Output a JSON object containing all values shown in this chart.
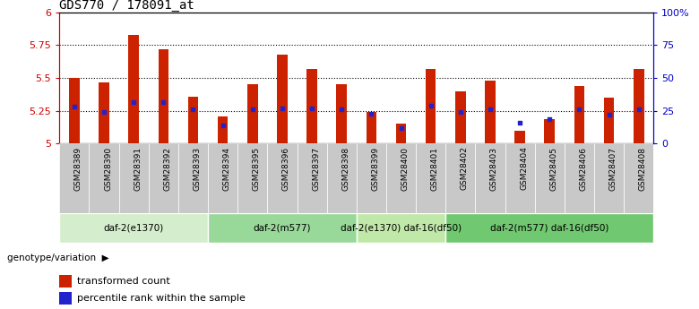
{
  "title": "GDS770 / 178091_at",
  "samples": [
    "GSM28389",
    "GSM28390",
    "GSM28391",
    "GSM28392",
    "GSM28393",
    "GSM28394",
    "GSM28395",
    "GSM28396",
    "GSM28397",
    "GSM28398",
    "GSM28399",
    "GSM28400",
    "GSM28401",
    "GSM28402",
    "GSM28403",
    "GSM28404",
    "GSM28405",
    "GSM28406",
    "GSM28407",
    "GSM28408"
  ],
  "bar_heights": [
    5.5,
    5.47,
    5.83,
    5.72,
    5.36,
    5.21,
    5.45,
    5.68,
    5.57,
    5.45,
    5.24,
    5.15,
    5.57,
    5.4,
    5.48,
    5.1,
    5.19,
    5.44,
    5.35,
    5.57
  ],
  "blue_dots": [
    5.28,
    5.24,
    5.32,
    5.32,
    5.26,
    5.14,
    5.26,
    5.27,
    5.27,
    5.26,
    5.23,
    5.12,
    5.29,
    5.24,
    5.26,
    5.16,
    5.19,
    5.26,
    5.22,
    5.26
  ],
  "ylim_left": [
    5.0,
    6.0
  ],
  "ylim_right": [
    0,
    100
  ],
  "yticks_left": [
    5.0,
    5.25,
    5.5,
    5.75,
    6.0
  ],
  "ytick_labels_left": [
    "5",
    "5.25",
    "5.5",
    "5.75",
    "6"
  ],
  "yticks_right": [
    0,
    25,
    50,
    75,
    100
  ],
  "ytick_labels_right": [
    "0",
    "25",
    "50",
    "75",
    "100%"
  ],
  "bar_color": "#cc2200",
  "dot_color": "#2222cc",
  "bar_bottom": 5.0,
  "group_labels": [
    "daf-2(e1370)",
    "daf-2(m577)",
    "daf-2(e1370) daf-16(df50)",
    "daf-2(m577) daf-16(df50)"
  ],
  "group_colors": [
    "#d4edcc",
    "#98d898",
    "#c0e8a8",
    "#70c870"
  ],
  "group_ranges": [
    [
      0,
      4
    ],
    [
      5,
      9
    ],
    [
      10,
      12
    ],
    [
      13,
      19
    ]
  ],
  "genotype_label": "genotype/variation",
  "legend_items": [
    "transformed count",
    "percentile rank within the sample"
  ],
  "title_fontsize": 10,
  "axis_color_left": "#cc0000",
  "axis_color_right": "#0000cc",
  "sample_bg_color": "#c8c8c8"
}
